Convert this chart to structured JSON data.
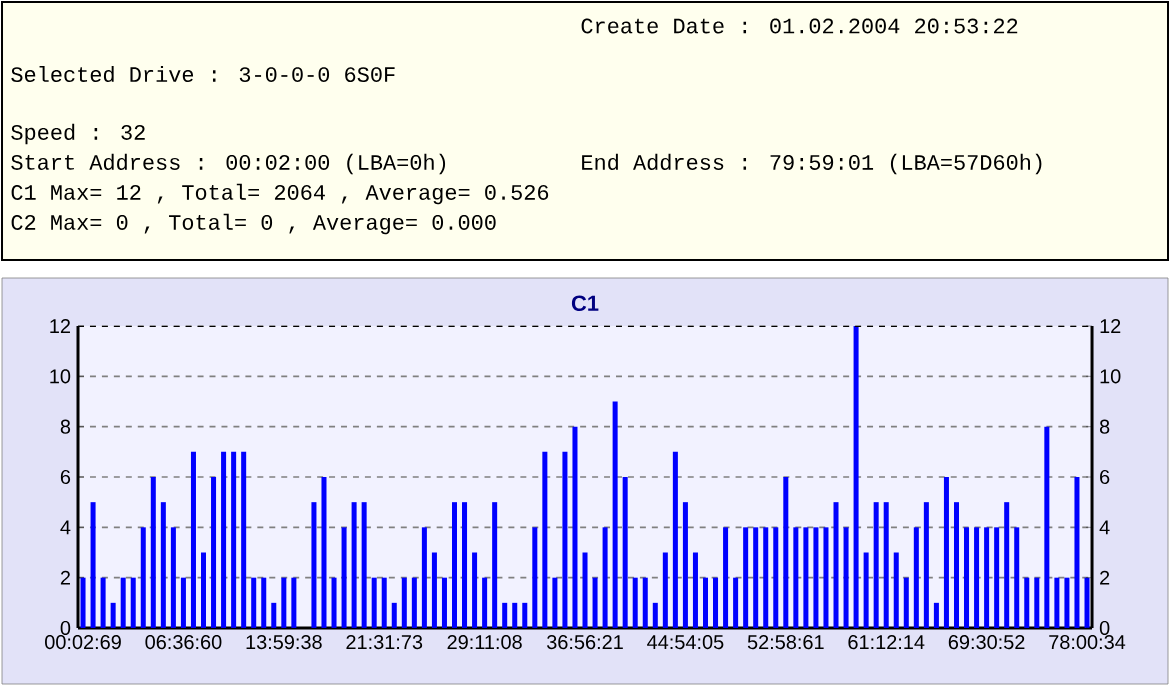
{
  "chart_data": {
    "type": "bar",
    "title": "C1",
    "categories": [
      "00:02:69",
      null,
      null,
      null,
      null,
      null,
      null,
      null,
      null,
      null,
      "06:36:60",
      null,
      null,
      null,
      null,
      null,
      null,
      null,
      null,
      null,
      "13:59:38",
      null,
      null,
      null,
      null,
      null,
      null,
      null,
      null,
      null,
      "21:31:73",
      null,
      null,
      null,
      null,
      null,
      null,
      null,
      null,
      null,
      "29:11:08",
      null,
      null,
      null,
      null,
      null,
      null,
      null,
      null,
      null,
      "36:56:21",
      null,
      null,
      null,
      null,
      null,
      null,
      null,
      null,
      null,
      "44:54:05",
      null,
      null,
      null,
      null,
      null,
      null,
      null,
      null,
      null,
      "52:58:61",
      null,
      null,
      null,
      null,
      null,
      null,
      null,
      null,
      null,
      "61:12:14",
      null,
      null,
      null,
      null,
      null,
      null,
      null,
      null,
      null,
      "69:30:52",
      null,
      null,
      null,
      null,
      null,
      null,
      null,
      null,
      null,
      "78:00:34"
    ],
    "values": [
      2,
      5,
      2,
      1,
      2,
      2,
      4,
      6,
      5,
      4,
      2,
      7,
      3,
      6,
      7,
      7,
      7,
      2,
      2,
      1,
      2,
      2,
      0,
      5,
      6,
      2,
      4,
      5,
      5,
      2,
      2,
      1,
      2,
      2,
      4,
      3,
      2,
      5,
      5,
      3,
      2,
      5,
      1,
      1,
      1,
      4,
      7,
      2,
      7,
      8,
      3,
      2,
      4,
      9,
      6,
      2,
      2,
      1,
      3,
      7,
      5,
      3,
      2,
      2,
      4,
      2,
      4,
      4,
      4,
      4,
      6,
      4,
      4,
      4,
      4,
      5,
      4,
      12,
      3,
      5,
      5,
      3,
      2,
      4,
      5,
      1,
      6,
      5,
      4,
      4,
      4,
      4,
      5,
      4,
      2,
      2,
      8,
      2,
      2,
      6,
      2
    ],
    "color": "#0000ff",
    "ylim": [
      0,
      12
    ],
    "yticks": [
      0,
      2,
      4,
      6,
      8,
      10,
      12
    ],
    "y2lim": [
      0,
      12
    ],
    "y2ticks": [
      0,
      2,
      4,
      6,
      8,
      10,
      12
    ],
    "grid": "y",
    "annotations": [
      "Create Date : 01.02.2004 20:53:22",
      "Selected Drive : 3-0-0-0 6S0F",
      "Speed : 32",
      "Start Address : 00:02:00 (LBA=0h)",
      "End Address : 79:59:01 (LBA=57D60h)",
      "C1 Max= 12 , Total= 2064 , Average= 0.526",
      "C2 Max= 0 , Total= 0 , Average= 0.000"
    ]
  }
}
